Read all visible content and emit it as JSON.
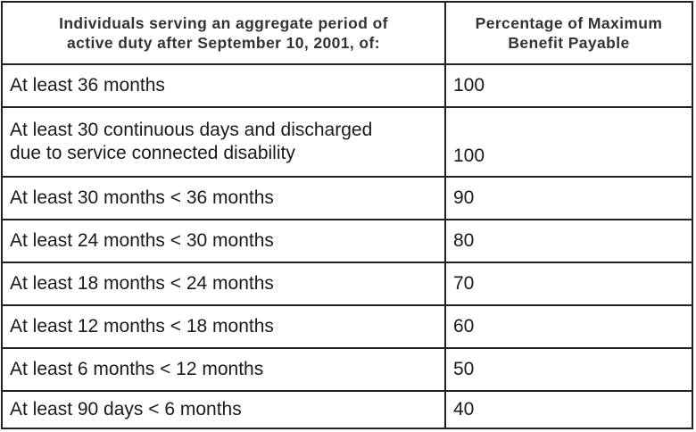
{
  "table": {
    "headers": [
      [
        "Individuals serving an aggregate period of",
        "active duty after September 10, 2001, of:"
      ],
      [
        "Percentage of Maximum",
        "Benefit Payable"
      ]
    ],
    "rows": [
      {
        "period": [
          "At least 36 months"
        ],
        "percentage": "100"
      },
      {
        "period": [
          "At least 30 continuous days and discharged",
          "due to service connected disability"
        ],
        "percentage": "100"
      },
      {
        "period": [
          "At least 30 months < 36 months"
        ],
        "percentage": "90"
      },
      {
        "period": [
          "At least 24 months < 30 months"
        ],
        "percentage": "80"
      },
      {
        "period": [
          "At least 18 months < 24 months"
        ],
        "percentage": "70"
      },
      {
        "period": [
          "At least 12 months < 18 months"
        ],
        "percentage": "60"
      },
      {
        "period": [
          "At least 6 months < 12 months"
        ],
        "percentage": "50"
      },
      {
        "period": [
          "At least 90 days < 6 months"
        ],
        "percentage": "40"
      }
    ]
  }
}
